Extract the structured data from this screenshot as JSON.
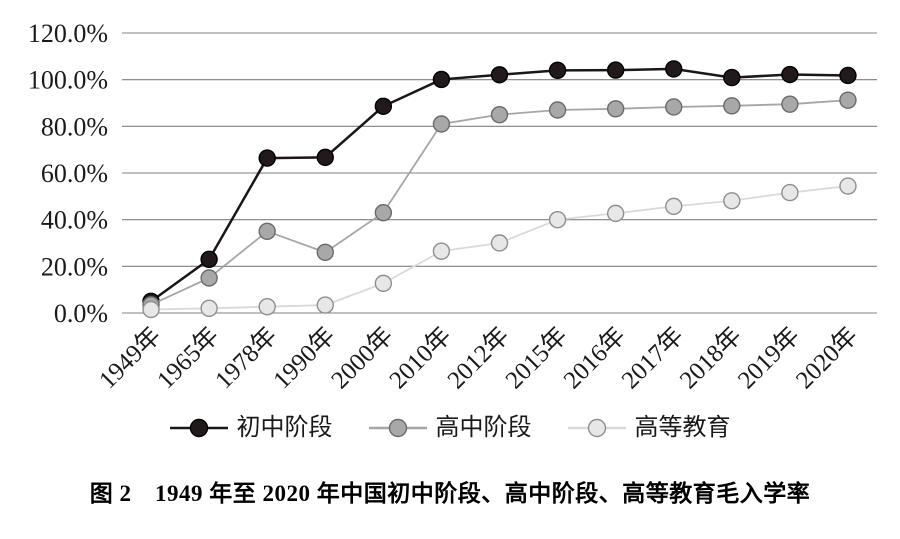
{
  "figure": {
    "caption": "图 2　1949 年至 2020 年中国初中阶段、高中阶段、高等教育毛入学率"
  },
  "chart_data": {
    "type": "line",
    "title": "",
    "xlabel": "",
    "ylabel": "",
    "ylim": [
      0,
      120
    ],
    "grid": true,
    "gridline_color": "#808080",
    "legend_position": "bottom",
    "y_tick_labels": [
      "0.0%",
      "20.0%",
      "40.0%",
      "60.0%",
      "80.0%",
      "100.0%",
      "120.0%"
    ],
    "categories": [
      "1949年",
      "1965年",
      "1978年",
      "1990年",
      "2000年",
      "2010年",
      "2012年",
      "2015年",
      "2016年",
      "2017年",
      "2018年",
      "2019年",
      "2020年"
    ],
    "series": [
      {
        "name": "初中阶段",
        "line_color": "#1c1616",
        "line_width": 2.5,
        "marker_fill": "#221a1a",
        "marker_stroke": "#000000",
        "values": [
          5.0,
          23.0,
          66.4,
          66.7,
          88.6,
          100.1,
          102.1,
          104.0,
          104.1,
          104.6,
          100.9,
          102.2,
          101.8
        ]
      },
      {
        "name": "高中阶段",
        "line_color": "#a6a6a6",
        "line_width": 1.8,
        "marker_fill": "#a8a8a8",
        "marker_stroke": "#6b6b6b",
        "values": [
          3.5,
          15.0,
          35.0,
          26.0,
          43.0,
          81.0,
          85.0,
          87.0,
          87.5,
          88.3,
          88.8,
          89.5,
          91.2
        ]
      },
      {
        "name": "高等教育",
        "line_color": "#d9d9d9",
        "line_width": 1.8,
        "marker_fill": "#e7e7e7",
        "marker_stroke": "#8f8f8f",
        "values": [
          1.5,
          2.0,
          2.7,
          3.4,
          12.7,
          26.5,
          30.0,
          40.0,
          42.7,
          45.7,
          48.1,
          51.6,
          54.4
        ]
      }
    ]
  }
}
